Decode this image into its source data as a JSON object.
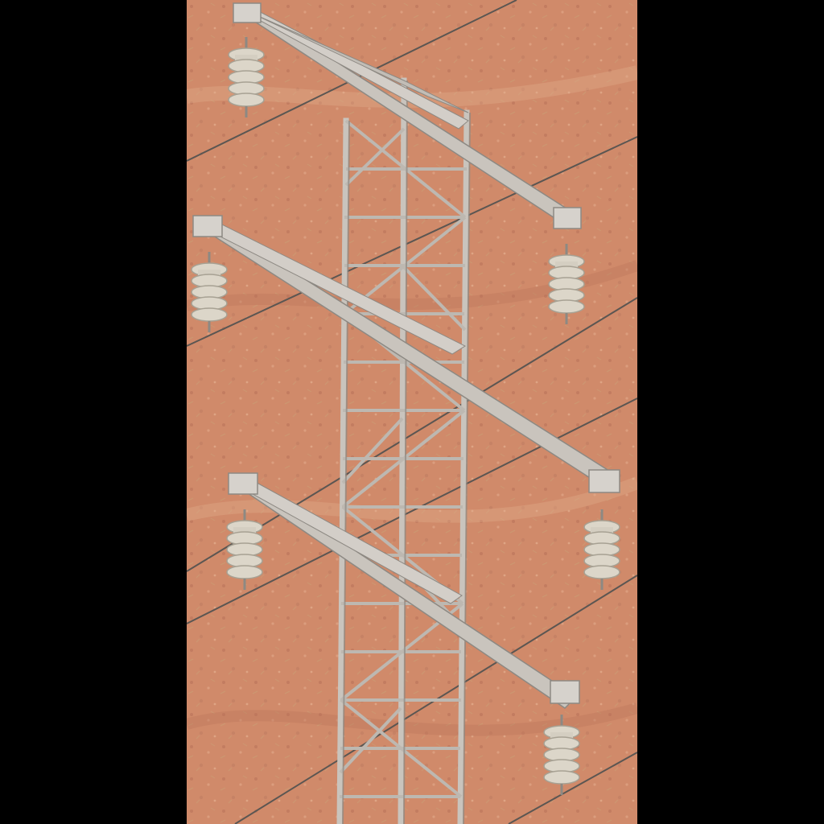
{
  "image": {
    "subject": "tower-crossarm-insulator-conductor",
    "colors": {
      "letterbox": "#000000",
      "ground": "#d08a6a",
      "ground_dark": "#b8705a",
      "ground_light": "#dca07e",
      "steel": "#c9c4bd",
      "steel_shadow": "#8d8983",
      "insulator": "#dcd6c9",
      "insulator_shadow": "#a7a193",
      "wire": "#5b5652"
    }
  }
}
